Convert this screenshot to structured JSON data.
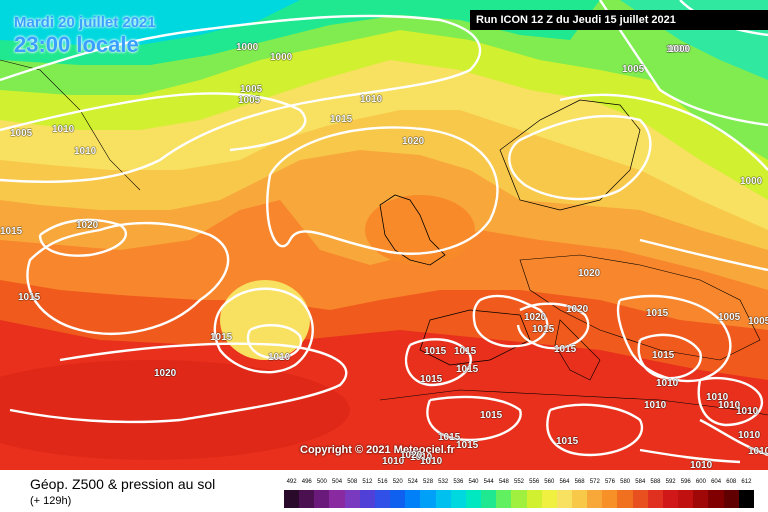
{
  "header": {
    "date_label": "Mardi 20 juillet 2021",
    "time_label": "23:00 locale",
    "run_label": "Run ICON 12 Z du Jeudi 15 juillet 2021"
  },
  "copyright": "Copyright © 2021 Meteociel.fr",
  "footer": {
    "title": "Géop. Z500 & pression au sol",
    "subtitle": "(+ 129h)"
  },
  "legend": {
    "ticks": [
      "492",
      "496",
      "500",
      "504",
      "508",
      "512",
      "516",
      "520",
      "524",
      "528",
      "532",
      "536",
      "540",
      "544",
      "548",
      "552",
      "556",
      "560",
      "564",
      "568",
      "572",
      "576",
      "580",
      "584",
      "588",
      "592",
      "596",
      "600",
      "604",
      "608",
      "612"
    ],
    "colors": [
      "#2a0a2a",
      "#4a1050",
      "#6a1a7a",
      "#8a2aa0",
      "#7a3ac0",
      "#5040d8",
      "#3050e8",
      "#1060f0",
      "#0080f8",
      "#00a0f8",
      "#00c0f0",
      "#00d8e0",
      "#00e8c0",
      "#20e890",
      "#60f060",
      "#a0f040",
      "#d0f030",
      "#f0f040",
      "#f8e060",
      "#f8c848",
      "#f8a838",
      "#f89028",
      "#f07020",
      "#e85020",
      "#e03020",
      "#d01818",
      "#c01010",
      "#a00808",
      "#800000",
      "#600000",
      "#000000"
    ]
  },
  "pressure_labels": [
    {
      "text": "1000"
    },
    {
      "text": "1000"
    },
    {
      "text": "1000"
    },
    {
      "text": "1005"
    },
    {
      "text": "1005"
    },
    {
      "text": "1005"
    },
    {
      "text": "1010"
    },
    {
      "text": "1010"
    },
    {
      "text": "1010"
    },
    {
      "text": "1015"
    },
    {
      "text": "1020"
    },
    {
      "text": "1020"
    },
    {
      "text": "1015"
    },
    {
      "text": "1015"
    },
    {
      "text": "1010"
    },
    {
      "text": "1020"
    },
    {
      "text": "1020"
    },
    {
      "text": "1020"
    },
    {
      "text": "1015"
    },
    {
      "text": "1015"
    },
    {
      "text": "1020"
    },
    {
      "text": "1015"
    },
    {
      "text": "1015"
    },
    {
      "text": "1015"
    },
    {
      "text": "1015"
    },
    {
      "text": "1015"
    },
    {
      "text": "1015"
    },
    {
      "text": "1015"
    },
    {
      "text": "1015"
    },
    {
      "text": "1010"
    },
    {
      "text": "1010"
    },
    {
      "text": "1010"
    },
    {
      "text": "1015"
    },
    {
      "text": "1015"
    },
    {
      "text": "1005"
    },
    {
      "text": "1000"
    },
    {
      "text": "1005"
    },
    {
      "text": "1000"
    },
    {
      "text": "1005"
    },
    {
      "text": "1015"
    },
    {
      "text": "1010"
    },
    {
      "text": "1010"
    },
    {
      "text": "1010"
    },
    {
      "text": "1010"
    },
    {
      "text": "1010"
    },
    {
      "text": "1010"
    },
    {
      "text": "1010"
    },
    {
      "text": "1020"
    },
    {
      "text": "1010"
    }
  ]
}
